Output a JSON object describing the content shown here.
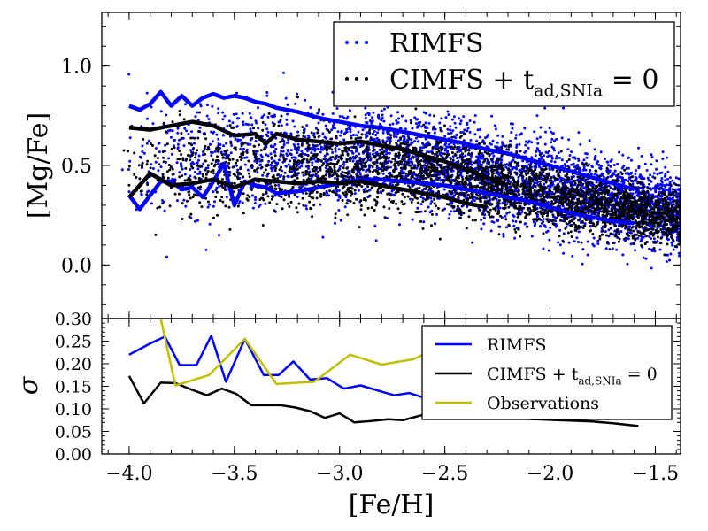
{
  "chart_data": [
    {
      "type": "scatter",
      "xlabel": "",
      "ylabel": "[Mg/Fe]",
      "xlim": [
        -4.13,
        -1.38
      ],
      "ylim": [
        -0.27,
        1.27
      ],
      "yticks": [
        0.0,
        0.5,
        1.0
      ],
      "ytick_labels": [
        "0.0",
        "0.5",
        "1.0"
      ],
      "grid": false,
      "legend_position": "top-right",
      "series": [
        {
          "name": "RIMFS",
          "color": "#0000ff",
          "kind": "scatter",
          "legend_math": {
            "lead": "RIMFS"
          }
        },
        {
          "name": "CIMFS + t_ad,SNIa = 0",
          "color": "#000000",
          "kind": "scatter",
          "legend_math": {
            "lead": "CIMFS + t",
            "sub": "ad,SNIa",
            "tail": " = 0"
          }
        },
        {
          "name": "RIMFS upper percentile",
          "color": "#0000ff",
          "kind": "line",
          "x": [
            -4.0,
            -3.95,
            -3.9,
            -3.85,
            -3.8,
            -3.75,
            -3.7,
            -3.65,
            -3.6,
            -3.55,
            -3.5,
            -3.45,
            -3.4,
            -3.35,
            -3.3,
            -3.2,
            -3.1,
            -3.0,
            -2.9,
            -2.8,
            -2.7,
            -2.6,
            -2.5,
            -2.4,
            -2.3,
            -2.2,
            -2.1,
            -2.0,
            -1.9,
            -1.8,
            -1.7,
            -1.6
          ],
          "y": [
            0.8,
            0.78,
            0.81,
            0.87,
            0.8,
            0.85,
            0.8,
            0.84,
            0.86,
            0.84,
            0.85,
            0.84,
            0.82,
            0.81,
            0.79,
            0.77,
            0.74,
            0.72,
            0.7,
            0.69,
            0.67,
            0.65,
            0.63,
            0.61,
            0.58,
            0.56,
            0.53,
            0.5,
            0.47,
            0.44,
            0.41,
            0.38
          ]
        },
        {
          "name": "RIMFS lower percentile",
          "color": "#0000ff",
          "kind": "line",
          "x": [
            -4.0,
            -3.95,
            -3.9,
            -3.85,
            -3.8,
            -3.75,
            -3.7,
            -3.65,
            -3.6,
            -3.55,
            -3.5,
            -3.45,
            -3.4,
            -3.35,
            -3.3,
            -3.2,
            -3.1,
            -3.0,
            -2.9,
            -2.8,
            -2.7,
            -2.6,
            -2.5,
            -2.4,
            -2.3,
            -2.2,
            -2.1,
            -2.0,
            -1.9,
            -1.8,
            -1.7,
            -1.6
          ],
          "y": [
            0.35,
            0.28,
            0.35,
            0.42,
            0.42,
            0.38,
            0.39,
            0.34,
            0.42,
            0.51,
            0.3,
            0.42,
            0.4,
            0.39,
            0.36,
            0.37,
            0.39,
            0.41,
            0.43,
            0.43,
            0.42,
            0.41,
            0.4,
            0.38,
            0.36,
            0.34,
            0.32,
            0.29,
            0.26,
            0.24,
            0.22,
            0.21
          ]
        },
        {
          "name": "CIMFS upper percentile",
          "color": "#000000",
          "kind": "line",
          "x": [
            -4.0,
            -3.9,
            -3.8,
            -3.7,
            -3.6,
            -3.5,
            -3.4,
            -3.35,
            -3.3,
            -3.2,
            -3.1,
            -3.0,
            -2.9,
            -2.8,
            -2.7,
            -2.6,
            -2.5,
            -2.4,
            -2.3,
            -2.2
          ],
          "y": [
            0.69,
            0.68,
            0.7,
            0.72,
            0.7,
            0.65,
            0.66,
            0.61,
            0.66,
            0.63,
            0.62,
            0.61,
            0.62,
            0.6,
            0.58,
            0.55,
            0.52,
            0.48,
            0.44,
            0.4
          ]
        },
        {
          "name": "CIMFS lower percentile",
          "color": "#000000",
          "kind": "line",
          "x": [
            -4.0,
            -3.9,
            -3.8,
            -3.7,
            -3.6,
            -3.5,
            -3.4,
            -3.3,
            -3.2,
            -3.1,
            -3.0,
            -2.9,
            -2.8,
            -2.7,
            -2.6,
            -2.5,
            -2.4,
            -2.3
          ],
          "y": [
            0.34,
            0.46,
            0.4,
            0.41,
            0.43,
            0.39,
            0.43,
            0.42,
            0.41,
            0.42,
            0.41,
            0.42,
            0.4,
            0.38,
            0.36,
            0.34,
            0.31,
            0.29
          ]
        }
      ]
    },
    {
      "type": "line",
      "xlabel": "[Fe/H]",
      "ylabel": "σ",
      "xlim": [
        -4.13,
        -1.38
      ],
      "ylim": [
        0.0,
        0.3
      ],
      "xticks": [
        -4.0,
        -3.5,
        -3.0,
        -2.5,
        -2.0,
        -1.5
      ],
      "xtick_labels": [
        "−4.0",
        "−3.5",
        "−3.0",
        "−2.5",
        "−2.0",
        "−1.5"
      ],
      "yticks": [
        0.0,
        0.05,
        0.1,
        0.15,
        0.2,
        0.25,
        0.3
      ],
      "ytick_labels": [
        "0.00",
        "0.05",
        "0.10",
        "0.15",
        "0.20",
        "0.25",
        "0.30"
      ],
      "grid": false,
      "legend_position": "right",
      "series": [
        {
          "name": "RIMFS",
          "color": "#0000ff",
          "legend_math": {
            "lead": "RIMFS"
          },
          "x": [
            -4.0,
            -3.9,
            -3.83,
            -3.76,
            -3.68,
            -3.61,
            -3.54,
            -3.45,
            -3.36,
            -3.29,
            -3.22,
            -3.14,
            -3.06,
            -2.98,
            -2.9,
            -2.8,
            -2.74,
            -2.67,
            -2.6
          ],
          "y": [
            0.22,
            0.245,
            0.26,
            0.197,
            0.197,
            0.262,
            0.16,
            0.255,
            0.175,
            0.175,
            0.205,
            0.165,
            0.168,
            0.145,
            0.152,
            0.138,
            0.13,
            0.135,
            0.125
          ]
        },
        {
          "name": "CIMFS + t_ad,SNIa = 0",
          "color": "#000000",
          "legend_math": {
            "lead": "CIMFS + t",
            "sub": "ad,SNIa",
            "tail": " = 0"
          },
          "x": [
            -4.0,
            -3.93,
            -3.85,
            -3.78,
            -3.7,
            -3.63,
            -3.56,
            -3.49,
            -3.42,
            -3.35,
            -3.28,
            -3.21,
            -3.14,
            -3.07,
            -3.0,
            -2.93,
            -2.85,
            -2.77,
            -2.7,
            -2.6,
            -1.8,
            -1.7,
            -1.58
          ],
          "y": [
            0.173,
            0.112,
            0.158,
            0.157,
            0.142,
            0.13,
            0.145,
            0.133,
            0.108,
            0.108,
            0.108,
            0.103,
            0.095,
            0.08,
            0.09,
            0.07,
            0.073,
            0.077,
            0.075,
            0.087,
            0.072,
            0.068,
            0.062
          ]
        },
        {
          "name": "Observations",
          "color": "#bfbf00",
          "legend_math": {
            "lead": "Observations"
          },
          "x": [
            -3.85,
            -3.78,
            -3.62,
            -3.45,
            -3.3,
            -3.12,
            -2.95,
            -2.8,
            -2.65,
            -2.58
          ],
          "y": [
            0.3,
            0.152,
            0.175,
            0.255,
            0.155,
            0.16,
            0.22,
            0.198,
            0.21,
            0.225
          ]
        }
      ]
    }
  ]
}
